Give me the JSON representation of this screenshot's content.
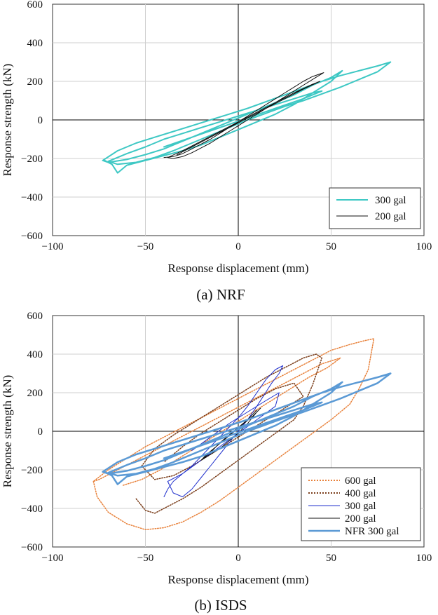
{
  "chart_data": [
    {
      "type": "line",
      "caption": "(a) NRF",
      "xlabel": "Response displacement (mm)",
      "ylabel": "Response strength (kN)",
      "xlim": [
        -100,
        100
      ],
      "ylim": [
        -600,
        600
      ],
      "xticks": [
        -100,
        -50,
        0,
        50,
        100
      ],
      "yticks": [
        -600,
        -400,
        -200,
        0,
        200,
        400,
        600
      ],
      "xtick_labels": [
        "−100",
        "−50",
        "0",
        "50",
        "100"
      ],
      "ytick_labels": [
        "−600",
        "−400",
        "−200",
        "0",
        "200",
        "400",
        "600"
      ],
      "grid": true,
      "legend_position": "bottom-right",
      "series": [
        {
          "name": "300 gal",
          "color": "#3ec8c4",
          "style": "solid",
          "width": 2,
          "x": [
            -72,
            -68,
            -65,
            -60,
            -50,
            -40,
            -30,
            -20,
            -10,
            0,
            10,
            20,
            30,
            40,
            50,
            56,
            50,
            40,
            30,
            20,
            10,
            0,
            -10,
            -20,
            -30,
            -40,
            -50,
            -60,
            -70,
            -73,
            -65,
            -55,
            -45,
            -35,
            -25,
            -15,
            -5,
            5,
            15,
            25,
            35,
            45,
            55,
            65,
            75,
            82,
            75,
            65,
            55,
            45,
            35,
            25,
            15,
            5,
            -5,
            -15,
            -25,
            -35,
            -45,
            -55,
            -65,
            -70,
            -60,
            -50,
            -40,
            -30,
            -20,
            -10,
            0,
            10,
            20,
            30,
            40,
            45,
            35,
            20,
            5,
            -10,
            -25,
            -40
          ],
          "y": [
            -210,
            -230,
            -275,
            -235,
            -210,
            -185,
            -160,
            -130,
            -90,
            -50,
            -10,
            30,
            80,
            140,
            200,
            255,
            220,
            180,
            130,
            90,
            50,
            10,
            -30,
            -70,
            -110,
            -150,
            -180,
            -205,
            -220,
            -210,
            -160,
            -120,
            -90,
            -60,
            -30,
            0,
            30,
            60,
            95,
            130,
            165,
            200,
            230,
            255,
            280,
            300,
            250,
            210,
            170,
            135,
            100,
            70,
            35,
            0,
            -40,
            -80,
            -120,
            -160,
            -195,
            -220,
            -230,
            -215,
            -175,
            -140,
            -100,
            -70,
            -40,
            -10,
            20,
            50,
            80,
            110,
            140,
            150,
            110,
            60,
            10,
            -40,
            -90,
            -140
          ]
        },
        {
          "name": "200 gal",
          "color": "#111111",
          "style": "solid",
          "width": 1,
          "x": [
            -40,
            -35,
            -30,
            -25,
            -20,
            -15,
            -10,
            -5,
            0,
            5,
            10,
            15,
            20,
            25,
            30,
            35,
            40,
            46,
            40,
            35,
            30,
            25,
            20,
            15,
            10,
            5,
            0,
            -5,
            -10,
            -15,
            -20,
            -25,
            -30,
            -35,
            -38,
            -30,
            -20,
            -10,
            0,
            10,
            20,
            30,
            40,
            44,
            35,
            25,
            15,
            5,
            -5,
            -15,
            -25,
            -33
          ],
          "y": [
            -195,
            -190,
            -175,
            -150,
            -125,
            -100,
            -70,
            -40,
            -10,
            20,
            50,
            80,
            110,
            140,
            170,
            200,
            225,
            245,
            210,
            180,
            150,
            120,
            90,
            60,
            30,
            0,
            -30,
            -60,
            -90,
            -120,
            -145,
            -170,
            -190,
            -200,
            -195,
            -160,
            -110,
            -60,
            -10,
            40,
            90,
            140,
            185,
            200,
            160,
            110,
            60,
            10,
            -40,
            -90,
            -140,
            -180
          ]
        }
      ]
    },
    {
      "type": "line",
      "caption": "(b) ISDS",
      "xlabel": "Response displacement (mm)",
      "ylabel": "Response strength (kN)",
      "xlim": [
        -100,
        100
      ],
      "ylim": [
        -600,
        600
      ],
      "xticks": [
        -100,
        -50,
        0,
        50,
        100
      ],
      "yticks": [
        -600,
        -400,
        -200,
        0,
        200,
        400,
        600
      ],
      "xtick_labels": [
        "−100",
        "−50",
        "0",
        "50",
        "100"
      ],
      "ytick_labels": [
        "−600",
        "−400",
        "−200",
        "0",
        "200",
        "400",
        "600"
      ],
      "grid": true,
      "legend_position": "bottom-right",
      "series": [
        {
          "name": "600 gal",
          "color": "#e8813a",
          "style": "dotted",
          "width": 1.5,
          "x": [
            -78,
            -76,
            -70,
            -60,
            -50,
            -40,
            -30,
            -20,
            -10,
            0,
            10,
            20,
            30,
            40,
            50,
            60,
            65,
            70,
            73,
            68,
            60,
            50,
            40,
            30,
            20,
            10,
            0,
            -10,
            -20,
            -30,
            -40,
            -50,
            -60,
            -70,
            -78,
            -75,
            -65,
            -55,
            -45,
            -35,
            -25,
            -15,
            -5,
            5,
            15,
            25,
            35,
            45,
            55,
            48,
            38,
            28,
            18,
            8,
            -2,
            -12,
            -22,
            -32,
            -42,
            -52,
            -62
          ],
          "y": [
            -260,
            -340,
            -420,
            -480,
            -510,
            -500,
            -470,
            -420,
            -360,
            -290,
            -220,
            -150,
            -80,
            -10,
            60,
            140,
            220,
            320,
            480,
            470,
            450,
            420,
            370,
            320,
            270,
            220,
            170,
            120,
            70,
            20,
            -30,
            -80,
            -140,
            -200,
            -260,
            -250,
            -200,
            -150,
            -100,
            -50,
            0,
            50,
            100,
            150,
            200,
            250,
            300,
            350,
            380,
            330,
            280,
            220,
            160,
            100,
            40,
            -20,
            -80,
            -140,
            -200,
            -250,
            -280
          ]
        },
        {
          "name": "400 gal",
          "color": "#7a3d1a",
          "style": "dotted",
          "width": 1.5,
          "x": [
            -55,
            -50,
            -45,
            -40,
            -30,
            -20,
            -10,
            0,
            10,
            20,
            30,
            35,
            40,
            45,
            42,
            35,
            25,
            15,
            5,
            -5,
            -15,
            -25,
            -35,
            -45,
            -52,
            -45,
            -35,
            -25,
            -15,
            -5,
            5,
            15,
            25,
            35,
            30,
            20,
            10,
            0,
            -10,
            -20,
            -30,
            -40
          ],
          "y": [
            -350,
            -410,
            -425,
            -400,
            -350,
            -290,
            -220,
            -150,
            -80,
            -10,
            60,
            130,
            240,
            380,
            400,
            380,
            330,
            280,
            220,
            160,
            100,
            40,
            -20,
            -90,
            -180,
            -250,
            -230,
            -180,
            -120,
            -60,
            0,
            60,
            120,
            180,
            250,
            220,
            170,
            110,
            50,
            -10,
            -80,
            -160
          ]
        },
        {
          "name": "300 gal",
          "color": "#1f2fcc",
          "style": "solid",
          "width": 1,
          "x": [
            -40,
            -38,
            -35,
            -30,
            -25,
            -20,
            -15,
            -10,
            -5,
            0,
            5,
            10,
            15,
            20,
            24,
            22,
            18,
            14,
            10,
            5,
            0,
            -5,
            -10,
            -15,
            -20,
            -25,
            -30,
            -35,
            -38,
            -30,
            -20,
            -10,
            0,
            10,
            20,
            22,
            15,
            5,
            -5,
            -15,
            -25
          ],
          "y": [
            -340,
            -300,
            -260,
            -220,
            -180,
            -130,
            -80,
            -30,
            20,
            70,
            130,
            200,
            270,
            320,
            340,
            300,
            250,
            190,
            130,
            60,
            0,
            -60,
            -120,
            -180,
            -240,
            -300,
            -340,
            -320,
            -260,
            -220,
            -150,
            -80,
            -10,
            60,
            130,
            200,
            160,
            100,
            40,
            -30,
            -100
          ]
        },
        {
          "name": "200 gal",
          "color": "#111111",
          "style": "solid",
          "width": 1,
          "x": [
            -20,
            -15,
            -10,
            -5,
            0,
            5,
            10,
            12,
            8,
            3,
            -2,
            -7,
            -12,
            -17,
            -20,
            -15,
            -10,
            -5,
            0,
            5,
            10
          ],
          "y": [
            -150,
            -120,
            -90,
            -50,
            -10,
            40,
            100,
            120,
            80,
            40,
            0,
            -40,
            -80,
            -120,
            -150,
            -110,
            -60,
            -20,
            20,
            60,
            110
          ]
        },
        {
          "name": "NFR 300 gal",
          "color": "#5b9ad5",
          "style": "solid",
          "width": 2.5,
          "x": [
            -72,
            -68,
            -65,
            -60,
            -50,
            -40,
            -30,
            -20,
            -10,
            0,
            10,
            20,
            30,
            40,
            50,
            56,
            50,
            40,
            30,
            20,
            10,
            0,
            -10,
            -20,
            -30,
            -40,
            -50,
            -60,
            -70,
            -73,
            -65,
            -55,
            -45,
            -35,
            -25,
            -15,
            -5,
            5,
            15,
            25,
            35,
            45,
            55,
            65,
            75,
            82,
            75,
            65,
            55,
            45,
            35,
            25,
            15,
            5,
            -5,
            -15,
            -25,
            -35,
            -45,
            -55,
            -65,
            -70,
            -60,
            -50,
            -40,
            -30,
            -20,
            -10,
            0,
            10,
            20,
            30,
            40,
            45,
            35,
            20,
            5,
            -10,
            -25,
            -40
          ],
          "y": [
            -210,
            -230,
            -275,
            -235,
            -210,
            -185,
            -160,
            -130,
            -90,
            -50,
            -10,
            30,
            80,
            140,
            200,
            255,
            220,
            180,
            130,
            90,
            50,
            10,
            -30,
            -70,
            -110,
            -150,
            -180,
            -205,
            -220,
            -210,
            -160,
            -120,
            -90,
            -60,
            -30,
            0,
            30,
            60,
            95,
            130,
            165,
            200,
            230,
            255,
            280,
            300,
            250,
            210,
            170,
            135,
            100,
            70,
            35,
            0,
            -40,
            -80,
            -120,
            -160,
            -195,
            -220,
            -230,
            -215,
            -175,
            -140,
            -100,
            -70,
            -40,
            -10,
            20,
            50,
            80,
            110,
            140,
            150,
            110,
            60,
            10,
            -40,
            -90,
            -140
          ]
        }
      ]
    }
  ]
}
